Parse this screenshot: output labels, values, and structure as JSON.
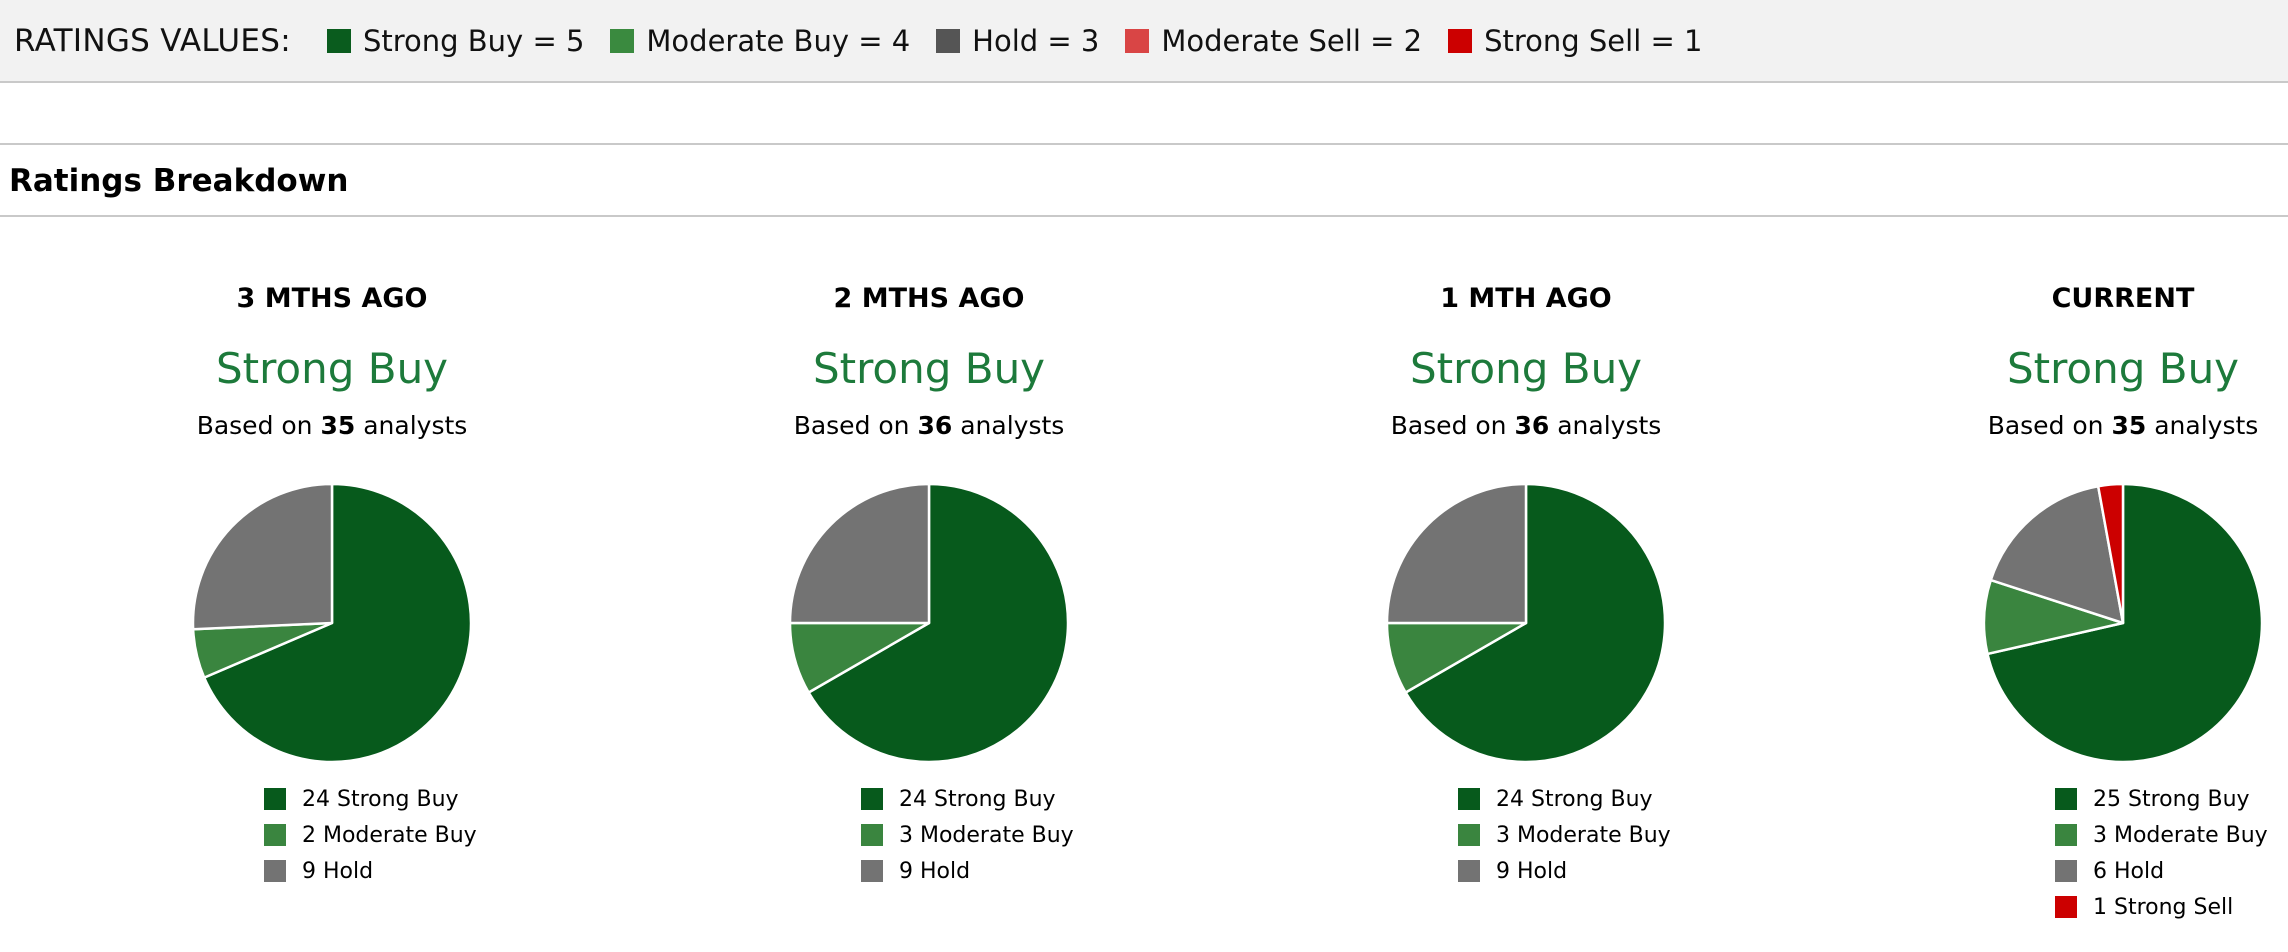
{
  "header": {
    "label": "RATINGS VALUES:",
    "keys": [
      {
        "label": "Strong Buy = 5",
        "color": "#0a5c1e"
      },
      {
        "label": "Moderate Buy = 4",
        "color": "#3a8a3f"
      },
      {
        "label": "Hold = 3",
        "color": "#555555"
      },
      {
        "label": "Moderate Sell = 2",
        "color": "#d94545"
      },
      {
        "label": "Strong Sell = 1",
        "color": "#cc0000"
      }
    ]
  },
  "section": {
    "title": "Ratings Breakdown"
  },
  "colors": {
    "strong_buy": "#075a1c",
    "moderate_buy": "#3a853f",
    "hold": "#737373",
    "strong_sell": "#cc0000",
    "rating_text": "#1d7a3b"
  },
  "chart_data": [
    {
      "type": "pie",
      "title": "3 MTHS AGO",
      "rating": "Strong Buy",
      "analysts": "35",
      "slices": [
        {
          "label": "Strong Buy",
          "value": 24,
          "color_key": "strong_buy",
          "legend": "24 Strong Buy"
        },
        {
          "label": "Moderate Buy",
          "value": 2,
          "color_key": "moderate_buy",
          "legend": "2 Moderate Buy"
        },
        {
          "label": "Hold",
          "value": 9,
          "color_key": "hold",
          "legend": "9 Hold"
        }
      ]
    },
    {
      "type": "pie",
      "title": "2 MTHS AGO",
      "rating": "Strong Buy",
      "analysts": "36",
      "slices": [
        {
          "label": "Strong Buy",
          "value": 24,
          "color_key": "strong_buy",
          "legend": "24 Strong Buy"
        },
        {
          "label": "Moderate Buy",
          "value": 3,
          "color_key": "moderate_buy",
          "legend": "3 Moderate Buy"
        },
        {
          "label": "Hold",
          "value": 9,
          "color_key": "hold",
          "legend": "9 Hold"
        }
      ]
    },
    {
      "type": "pie",
      "title": "1 MTH AGO",
      "rating": "Strong Buy",
      "analysts": "36",
      "slices": [
        {
          "label": "Strong Buy",
          "value": 24,
          "color_key": "strong_buy",
          "legend": "24 Strong Buy"
        },
        {
          "label": "Moderate Buy",
          "value": 3,
          "color_key": "moderate_buy",
          "legend": "3 Moderate Buy"
        },
        {
          "label": "Hold",
          "value": 9,
          "color_key": "hold",
          "legend": "9 Hold"
        }
      ]
    },
    {
      "type": "pie",
      "title": "CURRENT",
      "rating": "Strong Buy",
      "analysts": "35",
      "slices": [
        {
          "label": "Strong Buy",
          "value": 25,
          "color_key": "strong_buy",
          "legend": "25 Strong Buy"
        },
        {
          "label": "Moderate Buy",
          "value": 3,
          "color_key": "moderate_buy",
          "legend": "3 Moderate Buy"
        },
        {
          "label": "Hold",
          "value": 6,
          "color_key": "hold",
          "legend": "6 Hold"
        },
        {
          "label": "Strong Sell",
          "value": 1,
          "color_key": "strong_sell",
          "legend": "1 Strong Sell"
        }
      ]
    }
  ],
  "based_on_prefix": "Based on",
  "based_on_suffix": "analysts"
}
